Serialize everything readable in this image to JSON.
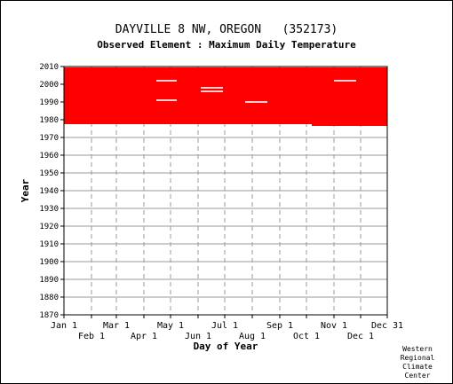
{
  "chart_data": {
    "type": "scatter",
    "title": "DAYVILLE 8 NW, OREGON   (352173)",
    "subtitle": "Observed Element : Maximum Daily Temperature",
    "xlabel": "Day of Year",
    "ylabel": "Year",
    "xlim": [
      1,
      365
    ],
    "ylim": [
      1870,
      2010
    ],
    "x_ticks_top": [
      {
        "label": "Jan 1",
        "day": 1
      },
      {
        "label": "Mar 1",
        "day": 60
      },
      {
        "label": "May 1",
        "day": 121
      },
      {
        "label": "Jul 1",
        "day": 182
      },
      {
        "label": "Sep 1",
        "day": 244
      },
      {
        "label": "Nov 1",
        "day": 305
      },
      {
        "label": "Dec 31",
        "day": 365
      }
    ],
    "x_ticks_bottom": [
      {
        "label": "Feb 1",
        "day": 32
      },
      {
        "label": "Apr 1",
        "day": 91
      },
      {
        "label": "Jun 1",
        "day": 152
      },
      {
        "label": "Aug 1",
        "day": 213
      },
      {
        "label": "Oct 1",
        "day": 274
      },
      {
        "label": "Dec 1",
        "day": 335
      }
    ],
    "y_ticks": [
      1870,
      1880,
      1890,
      1900,
      1910,
      1920,
      1930,
      1940,
      1950,
      1960,
      1970,
      1980,
      1990,
      2000,
      2010
    ],
    "grid": true,
    "series": [
      {
        "color": "#ff0000",
        "blocks": [
          {
            "day_start": 1,
            "day_end": 60,
            "year_start": 1978,
            "year_end": 2009
          },
          {
            "day_start": 60,
            "day_end": 280,
            "year_start": 1978,
            "year_end": 2009
          },
          {
            "day_start": 280,
            "day_end": 365,
            "year_start": 1977,
            "year_end": 2009
          }
        ],
        "gaps": [
          {
            "day_start": 105,
            "day_end": 128,
            "year": 2002
          },
          {
            "day_start": 105,
            "day_end": 128,
            "year": 1991
          },
          {
            "day_start": 155,
            "day_end": 180,
            "year": 1998
          },
          {
            "day_start": 155,
            "day_end": 180,
            "year": 1996
          },
          {
            "day_start": 205,
            "day_end": 230,
            "year": 1990
          },
          {
            "day_start": 305,
            "day_end": 330,
            "year": 2002
          }
        ]
      }
    ]
  },
  "credit": [
    "Western",
    "Regional",
    "Climate",
    "Center"
  ]
}
